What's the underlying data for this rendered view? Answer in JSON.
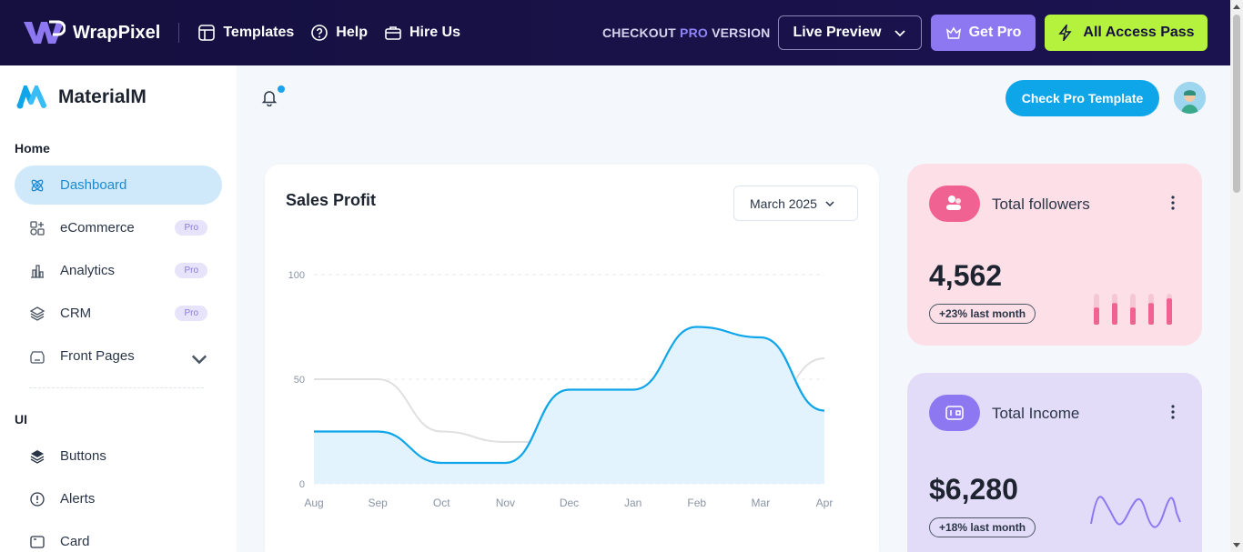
{
  "topbar": {
    "brand": "WrapPixel",
    "nav": [
      {
        "label": "Templates",
        "icon": "layout-icon"
      },
      {
        "label": "Help",
        "icon": "help-circle-icon"
      },
      {
        "label": "Hire Us",
        "icon": "briefcase-icon"
      }
    ],
    "checkout_prefix": "CHECKOUT ",
    "checkout_pro": "PRO",
    "checkout_suffix": " VERSION",
    "live_preview": "Live Preview",
    "get_pro": "Get Pro",
    "all_access": "All Access Pass"
  },
  "sidebar": {
    "brand": "MaterialM",
    "home_label": "Home",
    "ui_label": "UI",
    "items": [
      {
        "label": "Dashboard",
        "icon": "atom-icon",
        "active": true
      },
      {
        "label": "eCommerce",
        "icon": "apps-icon",
        "badge": "Pro"
      },
      {
        "label": "Analytics",
        "icon": "chart-bar-icon",
        "badge": "Pro"
      },
      {
        "label": "CRM",
        "icon": "layers-icon",
        "badge": "Pro"
      },
      {
        "label": "Front Pages",
        "icon": "app-window-icon"
      }
    ],
    "ui_items": [
      {
        "label": "Buttons",
        "icon": "stack-icon"
      },
      {
        "label": "Alerts",
        "icon": "alert-circle-icon"
      },
      {
        "label": "Card",
        "icon": "card-icon"
      }
    ]
  },
  "header": {
    "check_pro": "Check Pro Template"
  },
  "sales": {
    "title": "Sales Profit",
    "period": "March 2025"
  },
  "chart_data": {
    "type": "area",
    "title": "Sales Profit",
    "x": [
      "Aug",
      "Sep",
      "Oct",
      "Nov",
      "Dec",
      "Jan",
      "Feb",
      "Mar",
      "Apr"
    ],
    "ylim": [
      0,
      100
    ],
    "yticks": [
      "0",
      "50",
      "100"
    ],
    "grid": true,
    "colors": {
      "primary": "#0ea5e9",
      "secondary": "#e0e0e0"
    },
    "series": [
      {
        "values": [
          25,
          25,
          10,
          10,
          45,
          45,
          75,
          70,
          35
        ]
      },
      {
        "values": [
          50,
          50,
          25,
          20,
          20,
          20,
          35,
          35,
          60
        ]
      }
    ]
  },
  "followers": {
    "title": "Total followers",
    "value": "4,562",
    "change": "+23% last month",
    "bars": [
      0.55,
      0.7,
      0.55,
      0.7,
      0.85
    ],
    "accent": "#f06292"
  },
  "income": {
    "title": "Total Income",
    "value": "$6,280",
    "change": "+18% last month",
    "accent": "#8e78f1"
  }
}
